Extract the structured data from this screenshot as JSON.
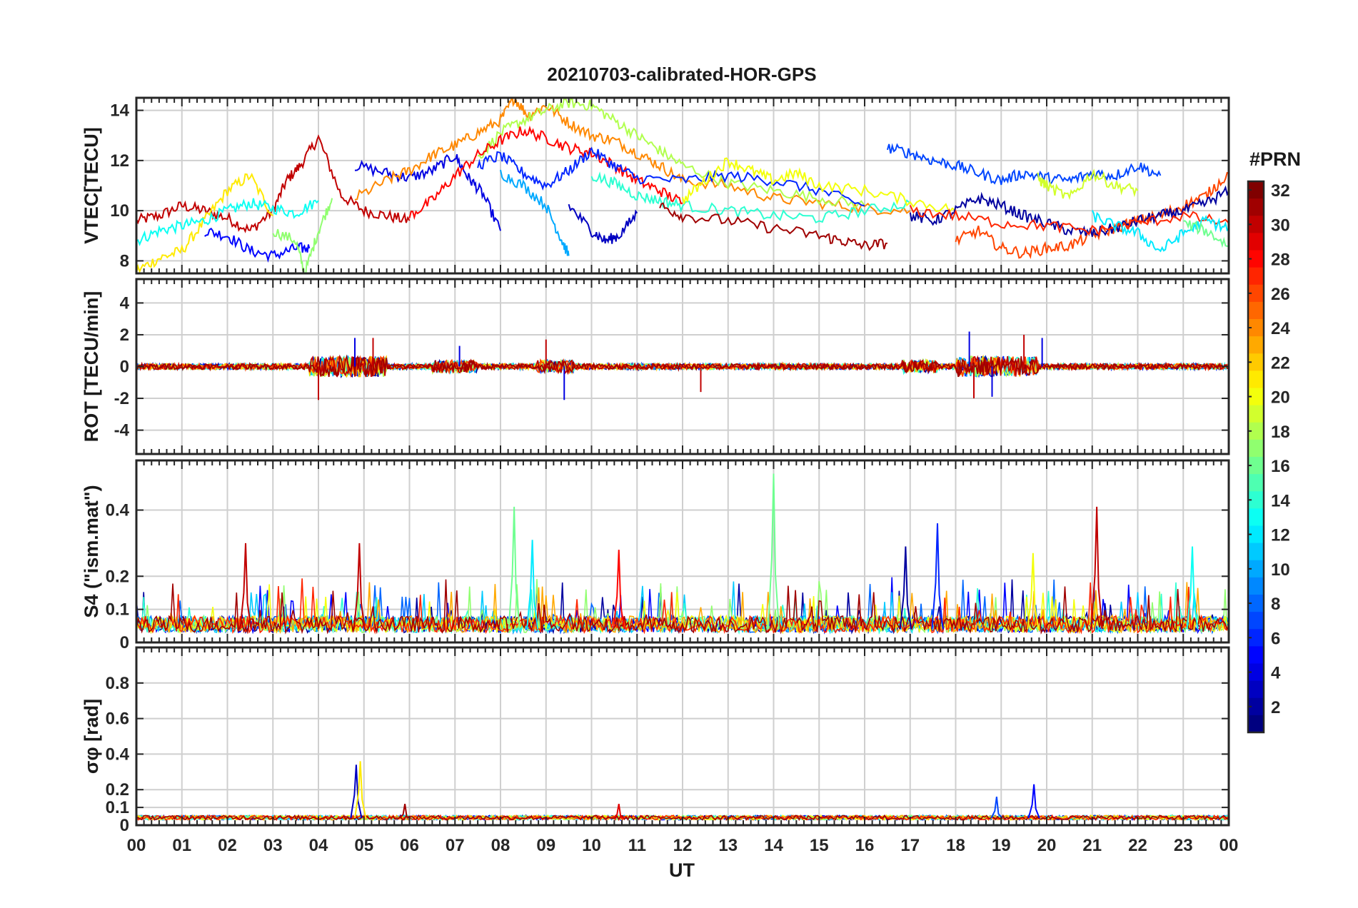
{
  "chart_data": {
    "type": "line",
    "title": "20210703-calibrated-HOR-GPS",
    "xlabel": "UT",
    "x_tick_labels": [
      "00",
      "01",
      "02",
      "03",
      "04",
      "05",
      "06",
      "07",
      "08",
      "09",
      "10",
      "11",
      "12",
      "13",
      "14",
      "15",
      "16",
      "17",
      "18",
      "19",
      "20",
      "21",
      "22",
      "23",
      "00"
    ],
    "xlim_hours": [
      0,
      24
    ],
    "grid": true,
    "colorbar": {
      "label": "#PRN",
      "range": [
        1,
        32
      ],
      "ticks": [
        "2",
        "4",
        "6",
        "8",
        "10",
        "12",
        "14",
        "16",
        "18",
        "20",
        "22",
        "24",
        "26",
        "28",
        "30",
        "32"
      ],
      "colormap": "jet"
    },
    "panels": [
      {
        "ylabel": "VTEC[TECU]",
        "ylim": [
          7.5,
          14.5
        ],
        "yticks": [
          "8",
          "10",
          "12",
          "14"
        ],
        "series": [
          {
            "prn": 30,
            "x": [
              0,
              0.5,
              1,
              1.5,
              2,
              2.5,
              3,
              3.3,
              3.6,
              4,
              4.5,
              5,
              5.5,
              6
            ],
            "y": [
              9.6,
              9.8,
              10.2,
              10,
              9.7,
              9.2,
              10,
              11.2,
              11.8,
              12.9,
              10.6,
              10,
              9.8,
              9.6
            ]
          },
          {
            "prn": 21,
            "x": [
              0,
              0.5,
              1,
              1.5,
              2,
              2.5,
              3
            ],
            "y": [
              7.6,
              8.1,
              8.4,
              9.6,
              10.8,
              11.4,
              9.8
            ]
          },
          {
            "prn": 13,
            "x": [
              0,
              0.5,
              1,
              1.5,
              2,
              2.5,
              3,
              3.5,
              4
            ],
            "y": [
              8.8,
              9.2,
              9.4,
              9.6,
              10,
              10.3,
              10.1,
              9.9,
              10.4
            ]
          },
          {
            "prn": 5,
            "x": [
              1.5,
              2,
              2.5,
              3,
              3.5,
              3.8
            ],
            "y": [
              9.2,
              9,
              8.4,
              8.2,
              8.5,
              8.5
            ]
          },
          {
            "prn": 17,
            "x": [
              3,
              3.5,
              3.7,
              4,
              4.3
            ],
            "y": [
              9.2,
              8.8,
              7.5,
              9.2,
              10.5
            ]
          },
          {
            "prn": 4,
            "x": [
              4.8,
              5.5,
              6,
              6.5,
              7,
              7.3,
              7.6,
              8
            ],
            "y": [
              11.8,
              11.5,
              11.3,
              11.6,
              12.2,
              11.3,
              10.7,
              9.2
            ]
          },
          {
            "prn": 24,
            "x": [
              4.8,
              5.5,
              6,
              6.5,
              7,
              7.5,
              8,
              8.3,
              8.6,
              9,
              9.5,
              10,
              10.5,
              11,
              11.5,
              12,
              13,
              14,
              15,
              16,
              17
            ],
            "y": [
              10.5,
              11.2,
              11.6,
              12.2,
              12.6,
              13.1,
              13.6,
              14.5,
              13.8,
              14.2,
              13.5,
              13,
              12.8,
              12.3,
              11.8,
              11.2,
              11,
              10.5,
              10.3,
              10.1,
              10
            ]
          },
          {
            "prn": 18,
            "x": [
              7.5,
              8,
              8.5,
              9,
              9.5,
              10,
              10.5,
              11,
              11.5,
              12,
              13,
              14,
              15,
              16
            ],
            "y": [
              12.1,
              13.1,
              13.6,
              14,
              14.3,
              14.2,
              13.6,
              13,
              12.4,
              11.8,
              11.1,
              10.8,
              10.5,
              10.2
            ]
          },
          {
            "prn": 28,
            "x": [
              6,
              6.5,
              7,
              7.5,
              8,
              8.5,
              9,
              9.5,
              10,
              10.5,
              11,
              11.5,
              12
            ],
            "y": [
              9.8,
              10.4,
              11.4,
              12.2,
              12.8,
              13.2,
              12.9,
              12.5,
              12.3,
              11.8,
              11.2,
              10.8,
              10.3
            ]
          },
          {
            "prn": 10,
            "x": [
              8,
              8.5,
              9,
              9.3,
              9.5
            ],
            "y": [
              11.5,
              11,
              10.2,
              9,
              8.2
            ]
          },
          {
            "prn": 6,
            "x": [
              7.5,
              8,
              8.5,
              9,
              9.5,
              10,
              10.5,
              11,
              12,
              13,
              14,
              15,
              16
            ],
            "y": [
              11.8,
              12.2,
              11.5,
              11,
              11.6,
              12.4,
              11.8,
              11.3,
              11.2,
              11.4,
              11.2,
              10.8,
              10.2
            ]
          },
          {
            "prn": 3,
            "x": [
              9.5,
              10,
              10.3,
              10.6,
              11
            ],
            "y": [
              10.2,
              9.2,
              8.8,
              9,
              9.9
            ]
          },
          {
            "prn": 14,
            "x": [
              10,
              10.5,
              11,
              11.5,
              12,
              13,
              14,
              15,
              16,
              17
            ],
            "y": [
              11.4,
              11.1,
              10.6,
              10.4,
              10.2,
              10,
              9.8,
              9.7,
              10,
              10.3
            ]
          },
          {
            "prn": 20,
            "x": [
              12,
              12.5,
              13,
              13.5,
              14,
              14.5,
              15,
              16,
              17,
              18
            ],
            "y": [
              10.4,
              11.2,
              12,
              11.6,
              11.2,
              11.5,
              11,
              10.8,
              10.4,
              10
            ]
          },
          {
            "prn": 31,
            "x": [
              11.5,
              12,
              13,
              14,
              15,
              15.5,
              16,
              16.5
            ],
            "y": [
              10.2,
              9.8,
              9.6,
              9.3,
              9,
              8.8,
              8.6,
              8.7
            ]
          },
          {
            "prn": 7,
            "x": [
              16.5,
              17,
              17.5,
              18,
              18.5,
              19,
              19.5,
              20,
              20.5,
              21,
              21.5,
              22,
              22.5
            ],
            "y": [
              12.5,
              12.3,
              12,
              11.8,
              11.5,
              11.2,
              11.5,
              11.3,
              11.2,
              11.5,
              11.4,
              11.8,
              11.4
            ]
          },
          {
            "prn": 19,
            "x": [
              19.8,
              20,
              20.5,
              21,
              21.5,
              22
            ],
            "y": [
              11.3,
              11,
              10.5,
              11.5,
              11,
              10.8
            ]
          },
          {
            "prn": 26,
            "x": [
              18,
              18.5,
              19,
              19.5,
              20,
              20.5,
              21,
              21.5,
              22,
              22.5,
              23,
              23.5,
              24
            ],
            "y": [
              8.8,
              9.2,
              8.5,
              8.3,
              8.5,
              8.6,
              9,
              9.3,
              9.6,
              9.8,
              10.2,
              10.6,
              11.5
            ]
          },
          {
            "prn": 2,
            "x": [
              17,
              17.5,
              18,
              18.5,
              19,
              19.5,
              20,
              20.5,
              21,
              21.5,
              22,
              22.5,
              23,
              23.5,
              24
            ],
            "y": [
              9.8,
              9.6,
              10,
              10.5,
              10.2,
              9.8,
              9.5,
              9.2,
              9.1,
              9.3,
              9.6,
              9.8,
              10,
              10.3,
              10.8
            ]
          },
          {
            "prn": 27,
            "x": [
              17,
              18,
              19,
              20,
              21,
              22,
              23,
              24
            ],
            "y": [
              10,
              9.8,
              9.5,
              9.4,
              9.2,
              9.5,
              9.8,
              9.5
            ]
          },
          {
            "prn": 12,
            "x": [
              21,
              21.5,
              22,
              22.5,
              23,
              23.5,
              24
            ],
            "y": [
              9.8,
              9.4,
              9.1,
              8.4,
              9.1,
              9.6,
              9.3
            ]
          },
          {
            "prn": 16,
            "x": [
              23,
              23.5,
              24
            ],
            "y": [
              9.5,
              9.2,
              8.6
            ]
          }
        ]
      },
      {
        "ylabel": "ROT [TECU/min]",
        "ylim": [
          -5.5,
          5.5
        ],
        "yticks": [
          "-4",
          "-2",
          "0",
          "2",
          "4"
        ],
        "series": [
          {
            "prn": 2,
            "description": "noise around 0",
            "x": [
              0,
              4,
              4.9,
              8,
              10.5,
              14,
              18.3,
              19.5,
              24
            ],
            "y": [
              0,
              0,
              0,
              0,
              0,
              0,
              0,
              0,
              0
            ],
            "spikes": [
              [
                4,
                -2.1
              ],
              [
                4.8,
                1.8
              ],
              [
                5.2,
                1.8
              ],
              [
                7.1,
                1.3
              ],
              [
                9,
                1.7
              ],
              [
                9.4,
                -2.1
              ],
              [
                12.4,
                -1.6
              ],
              [
                18.3,
                2.2
              ],
              [
                18.4,
                -2
              ],
              [
                18.8,
                -1.9
              ],
              [
                19.5,
                2
              ],
              [
                19.9,
                1.8
              ]
            ]
          }
        ]
      },
      {
        "ylabel": "S4 (\"ism.mat\")",
        "ylim": [
          0,
          0.55
        ],
        "yticks": [
          "0",
          "0.1",
          "0.2",
          "0.4"
        ],
        "series": [
          {
            "prn": 16,
            "peak": [
              8.3,
              0.41
            ]
          },
          {
            "prn": 16,
            "peak": [
              14.0,
              0.51
            ]
          },
          {
            "prn": 30,
            "peak": [
              21.1,
              0.41
            ]
          },
          {
            "prn": 6,
            "peak": [
              17.6,
              0.36
            ]
          },
          {
            "prn": 2,
            "peak": [
              16.9,
              0.29
            ]
          },
          {
            "prn": 30,
            "peak": [
              2.4,
              0.3
            ]
          },
          {
            "prn": 30,
            "peak": [
              4.9,
              0.3
            ]
          },
          {
            "prn": 28,
            "peak": [
              10.6,
              0.28
            ]
          },
          {
            "prn": 12,
            "peak": [
              8.7,
              0.31
            ]
          },
          {
            "prn": 13,
            "peak": [
              23.2,
              0.29
            ]
          },
          {
            "prn": 20,
            "peak": [
              19.7,
              0.27
            ]
          }
        ]
      },
      {
        "ylabel": "σφ [rad]",
        "ylim": [
          0,
          1
        ],
        "yticks": [
          "0",
          "0.1",
          "0.2",
          "0.4",
          "0.6",
          "0.8"
        ],
        "series": [
          {
            "prn": 3,
            "peak": [
              4.83,
              0.34
            ]
          },
          {
            "prn": 21,
            "peak": [
              4.92,
              0.36
            ]
          },
          {
            "prn": 5,
            "peak": [
              19.72,
              0.23
            ]
          },
          {
            "prn": 7,
            "peak": [
              18.9,
              0.16
            ]
          },
          {
            "prn": 29,
            "peak": [
              10.6,
              0.12
            ]
          },
          {
            "prn": 31,
            "peak": [
              5.9,
              0.12
            ]
          }
        ]
      }
    ]
  }
}
